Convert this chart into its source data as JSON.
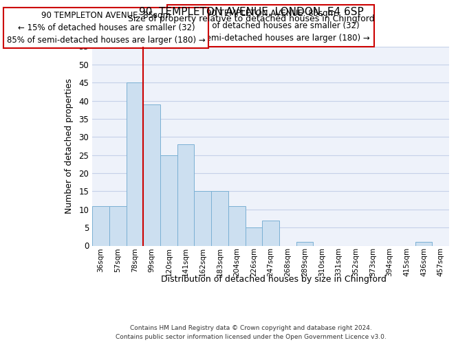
{
  "title": "90, TEMPLETON AVENUE, LONDON, E4 6SP",
  "subtitle": "Size of property relative to detached houses in Chingford",
  "xlabel": "Distribution of detached houses by size in Chingford",
  "ylabel": "Number of detached properties",
  "bin_labels": [
    "36sqm",
    "57sqm",
    "78sqm",
    "99sqm",
    "120sqm",
    "141sqm",
    "162sqm",
    "183sqm",
    "204sqm",
    "226sqm",
    "247sqm",
    "268sqm",
    "289sqm",
    "310sqm",
    "331sqm",
    "352sqm",
    "373sqm",
    "394sqm",
    "415sqm",
    "436sqm",
    "457sqm"
  ],
  "bar_heights": [
    11,
    11,
    45,
    39,
    25,
    28,
    15,
    15,
    11,
    5,
    7,
    0,
    1,
    0,
    0,
    0,
    0,
    0,
    0,
    1,
    0
  ],
  "bar_color": "#ccdff0",
  "bar_edge_color": "#7ab0d4",
  "property_line_color": "#cc0000",
  "annotation_title": "90 TEMPLETON AVENUE: 85sqm",
  "annotation_line1": "← 15% of detached houses are smaller (32)",
  "annotation_line2": "85% of semi-detached houses are larger (180) →",
  "annotation_box_color": "#ffffff",
  "annotation_box_edge": "#cc0000",
  "ylim": [
    0,
    55
  ],
  "yticks": [
    0,
    5,
    10,
    15,
    20,
    25,
    30,
    35,
    40,
    45,
    50,
    55
  ],
  "footer_line1": "Contains HM Land Registry data © Crown copyright and database right 2024.",
  "footer_line2": "Contains public sector information licensed under the Open Government Licence v3.0.",
  "bg_color": "#eef2fa",
  "grid_color": "#c5d0e8"
}
